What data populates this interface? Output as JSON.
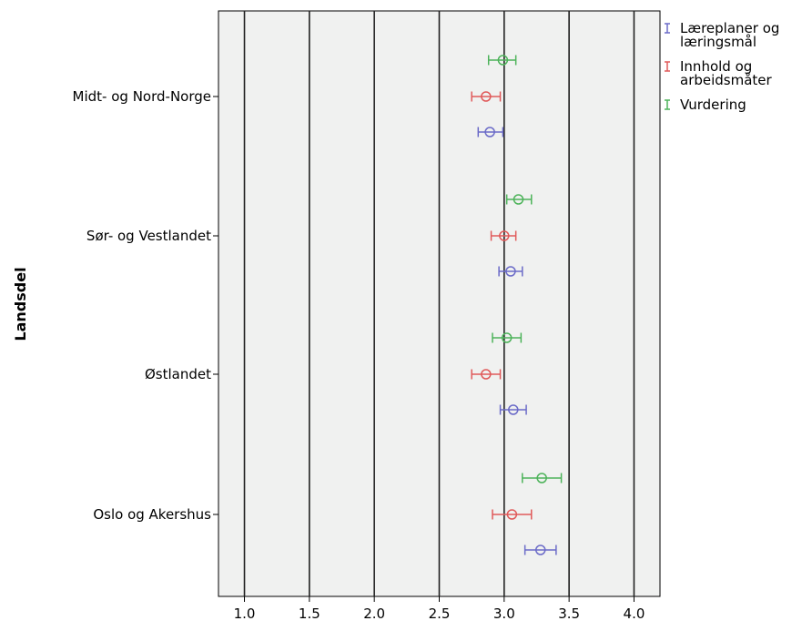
{
  "chart_data": {
    "type": "errorbar",
    "orientation": "horizontal",
    "ylabel": "Landsdel",
    "xlabel": "",
    "xlim": [
      0.8,
      4.2
    ],
    "x_ticks": [
      "1.0",
      "1.5",
      "2.0",
      "2.5",
      "3.0",
      "3.5",
      "4.0"
    ],
    "grid": "vertical",
    "legend_position": "top-right",
    "categories": [
      "Midt- og Nord-Norge",
      "Sør- og Vestlandet",
      "Østlandet",
      "Oslo og Akershus"
    ],
    "series": [
      {
        "name": "Læreplaner og læringsmål",
        "legend_lines": [
          "Læreplaner og",
          "læringsmål"
        ],
        "color": "#6b6bc8",
        "mean": [
          2.89,
          3.05,
          3.07,
          3.28
        ],
        "low": [
          2.8,
          2.96,
          2.97,
          3.16
        ],
        "high": [
          2.99,
          3.14,
          3.17,
          3.4
        ]
      },
      {
        "name": "Innhold og arbeidsmåter",
        "legend_lines": [
          "Innhold og",
          "arbeidsmåter"
        ],
        "color": "#e05a5a",
        "mean": [
          2.86,
          3.0,
          2.86,
          3.06
        ],
        "low": [
          2.75,
          2.9,
          2.75,
          2.91
        ],
        "high": [
          2.97,
          3.09,
          2.97,
          3.21
        ]
      },
      {
        "name": "Vurdering",
        "legend_lines": [
          "Vurdering"
        ],
        "color": "#4db35a",
        "mean": [
          2.99,
          3.11,
          3.02,
          3.29
        ],
        "low": [
          2.88,
          3.02,
          2.91,
          3.14
        ],
        "high": [
          3.09,
          3.21,
          3.13,
          3.44
        ]
      }
    ]
  }
}
